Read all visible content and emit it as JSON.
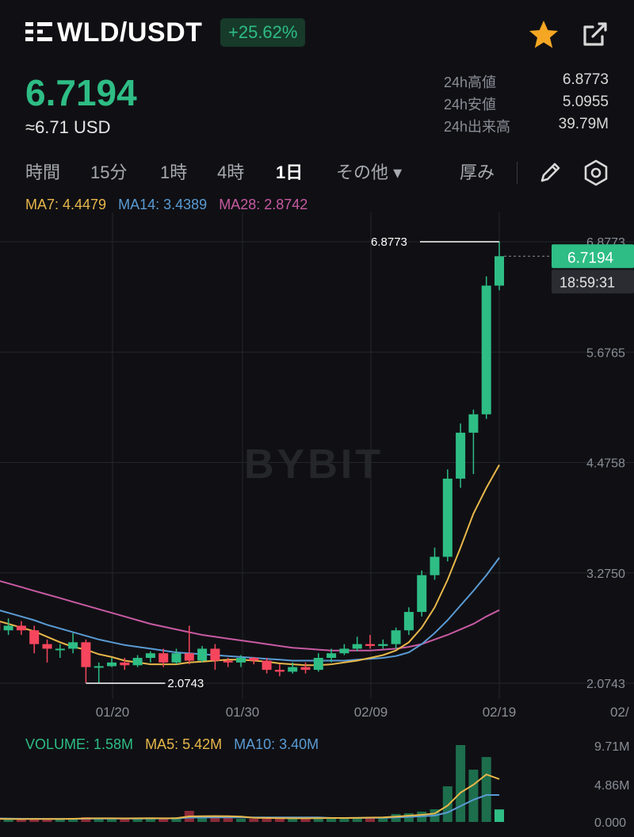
{
  "header": {
    "pair": "WLD/USDT",
    "change": "+25.62%",
    "logo_icon": "worldcoin-logo-icon",
    "star_icon": "star-icon",
    "share_icon": "share-icon"
  },
  "price": {
    "last": "6.7194",
    "usd": "≈6.71 USD"
  },
  "stats": [
    {
      "label": "24h高値",
      "value": "6.8773"
    },
    {
      "label": "24h安値",
      "value": "5.0955"
    },
    {
      "label": "24h出来高",
      "value": "39.79M"
    }
  ],
  "tabs": [
    {
      "label": "時間"
    },
    {
      "label": "15分"
    },
    {
      "label": "1時"
    },
    {
      "label": "4時"
    },
    {
      "label": "1日",
      "active": true
    },
    {
      "label": "その他 ▾"
    },
    {
      "label": "厚み"
    }
  ],
  "tools": {
    "pencil_icon": "pencil-icon",
    "settings_icon": "settings-icon"
  },
  "ma": {
    "ma7_label": "MA7: 4.4479",
    "ma14_label": "MA14: 3.4389",
    "ma28_label": "MA28: 2.8742",
    "ma7_color": "#e8b74a",
    "ma14_color": "#5a9bd4",
    "ma28_color": "#c85aa3"
  },
  "volume": {
    "vol_label": "VOLUME: 1.58M",
    "ma5_label": "MA5: 5.42M",
    "ma10_label": "MA10: 3.40M"
  },
  "chart_data": {
    "type": "candlestick",
    "watermark": "BYBIT",
    "up_color": "#2ebd85",
    "down_color": "#f6465d",
    "price_ticks": [
      "6.8773",
      "5.6765",
      "4.4758",
      "3.2750",
      "2.0743"
    ],
    "price_tick_values": [
      6.8773,
      5.6765,
      4.4758,
      3.275,
      2.0743
    ],
    "date_ticks": [
      "01/20",
      "01/30",
      "02/09",
      "02/19",
      "02/"
    ],
    "high_marker": "6.8773",
    "low_marker": "2.0743",
    "last_price_tag": "6.7194",
    "countdown_tag": "18:59:31",
    "volume_ticks": [
      "9.71M",
      "4.86M",
      "0.000"
    ],
    "candles": [
      [
        2.75,
        2.95,
        2.68,
        3.2
      ],
      [
        2.95,
        2.95,
        2.8,
        3.05
      ],
      [
        2.95,
        2.78,
        2.72,
        3.0
      ],
      [
        2.78,
        2.75,
        2.7,
        2.9
      ],
      [
        2.75,
        2.65,
        2.6,
        2.8
      ],
      [
        2.65,
        2.7,
        2.6,
        2.78
      ],
      [
        2.7,
        2.65,
        2.6,
        2.75
      ],
      [
        2.65,
        2.5,
        2.4,
        2.7
      ],
      [
        2.5,
        2.45,
        2.3,
        2.55
      ],
      [
        2.45,
        2.45,
        2.35,
        2.5
      ],
      [
        2.45,
        2.52,
        2.4,
        2.62
      ],
      [
        2.52,
        2.25,
        2.08,
        2.55
      ],
      [
        2.25,
        2.26,
        2.08,
        2.3
      ],
      [
        2.26,
        2.3,
        2.25,
        2.35
      ],
      [
        2.3,
        2.27,
        2.22,
        2.35
      ],
      [
        2.27,
        2.35,
        2.25,
        2.38
      ],
      [
        2.35,
        2.4,
        2.3,
        2.42
      ],
      [
        2.4,
        2.3,
        2.25,
        2.45
      ],
      [
        2.3,
        2.4,
        2.28,
        2.45
      ],
      [
        2.4,
        2.32,
        2.28,
        2.7
      ],
      [
        2.32,
        2.45,
        2.3,
        2.48
      ],
      [
        2.45,
        2.32,
        2.22,
        2.5
      ],
      [
        2.32,
        2.3,
        2.25,
        2.35
      ],
      [
        2.3,
        2.35,
        2.25,
        2.38
      ],
      [
        2.35,
        2.32,
        2.28,
        2.36
      ],
      [
        2.32,
        2.22,
        2.18,
        2.35
      ],
      [
        2.22,
        2.2,
        2.15,
        2.28
      ],
      [
        2.2,
        2.25,
        2.18,
        2.3
      ],
      [
        2.25,
        2.22,
        2.18,
        2.3
      ],
      [
        2.22,
        2.35,
        2.2,
        2.4
      ],
      [
        2.35,
        2.4,
        2.3,
        2.45
      ],
      [
        2.4,
        2.45,
        2.38,
        2.5
      ],
      [
        2.45,
        2.5,
        2.42,
        2.58
      ],
      [
        2.5,
        2.48,
        2.45,
        2.6
      ],
      [
        2.48,
        2.5,
        2.45,
        2.55
      ],
      [
        2.5,
        2.65,
        2.45,
        2.68
      ],
      [
        2.65,
        2.85,
        2.6,
        2.9
      ],
      [
        2.85,
        3.25,
        2.8,
        3.3
      ],
      [
        3.25,
        3.45,
        3.2,
        3.55
      ],
      [
        3.45,
        4.3,
        3.4,
        4.4
      ],
      [
        4.3,
        4.8,
        4.2,
        4.9
      ],
      [
        4.8,
        5.0,
        4.35,
        5.05
      ],
      [
        5.0,
        6.4,
        4.95,
        6.5
      ],
      [
        6.4,
        6.72,
        6.35,
        6.88
      ]
    ],
    "ma7": [
      2.85,
      2.86,
      2.82,
      2.8,
      2.76,
      2.72,
      2.68,
      2.64,
      2.58,
      2.52,
      2.47,
      2.44,
      2.39,
      2.36,
      2.32,
      2.3,
      2.28,
      2.28,
      2.28,
      2.3,
      2.31,
      2.32,
      2.33,
      2.33,
      2.32,
      2.31,
      2.29,
      2.28,
      2.27,
      2.27,
      2.28,
      2.3,
      2.32,
      2.35,
      2.38,
      2.43,
      2.52,
      2.68,
      2.9,
      3.2,
      3.55,
      3.92,
      4.2,
      4.45
    ],
    "ma14": [
      3.0,
      2.98,
      2.95,
      2.92,
      2.88,
      2.84,
      2.8,
      2.76,
      2.71,
      2.67,
      2.63,
      2.59,
      2.55,
      2.52,
      2.49,
      2.47,
      2.45,
      2.43,
      2.41,
      2.4,
      2.39,
      2.38,
      2.37,
      2.36,
      2.35,
      2.34,
      2.33,
      2.32,
      2.32,
      2.32,
      2.32,
      2.32,
      2.33,
      2.34,
      2.35,
      2.37,
      2.41,
      2.5,
      2.62,
      2.76,
      2.92,
      3.08,
      3.25,
      3.44
    ],
    "ma28": [
      3.3,
      3.29,
      3.27,
      3.24,
      3.2,
      3.16,
      3.12,
      3.08,
      3.04,
      3.0,
      2.96,
      2.92,
      2.88,
      2.84,
      2.8,
      2.76,
      2.72,
      2.69,
      2.66,
      2.63,
      2.6,
      2.58,
      2.56,
      2.54,
      2.52,
      2.5,
      2.48,
      2.46,
      2.45,
      2.44,
      2.43,
      2.43,
      2.43,
      2.43,
      2.44,
      2.45,
      2.47,
      2.5,
      2.55,
      2.6,
      2.66,
      2.72,
      2.8,
      2.87
    ],
    "volumes": [
      0.6,
      0.5,
      0.4,
      0.35,
      0.3,
      0.35,
      0.3,
      0.45,
      0.4,
      0.35,
      0.4,
      0.6,
      0.5,
      0.4,
      0.35,
      0.45,
      0.5,
      0.4,
      0.6,
      1.4,
      0.6,
      0.7,
      0.5,
      0.4,
      0.4,
      0.5,
      0.5,
      0.45,
      0.4,
      0.55,
      0.5,
      0.5,
      0.6,
      0.6,
      0.6,
      1.0,
      1.1,
      1.3,
      1.6,
      4.5,
      9.71,
      6.6,
      8.2,
      1.58
    ],
    "vol_ma5": [
      0.5,
      0.48,
      0.45,
      0.42,
      0.4,
      0.38,
      0.36,
      0.38,
      0.38,
      0.38,
      0.4,
      0.45,
      0.46,
      0.46,
      0.45,
      0.46,
      0.48,
      0.46,
      0.48,
      0.7,
      0.72,
      0.74,
      0.72,
      0.68,
      0.52,
      0.5,
      0.48,
      0.46,
      0.46,
      0.48,
      0.5,
      0.5,
      0.51,
      0.55,
      0.57,
      0.68,
      0.79,
      0.9,
      1.06,
      2.06,
      3.7,
      4.7,
      6.0,
      5.42
    ],
    "vol_ma10": [
      0.5,
      0.49,
      0.48,
      0.46,
      0.44,
      0.42,
      0.4,
      0.4,
      0.39,
      0.39,
      0.39,
      0.41,
      0.42,
      0.43,
      0.43,
      0.43,
      0.44,
      0.44,
      0.45,
      0.55,
      0.56,
      0.58,
      0.58,
      0.58,
      0.58,
      0.58,
      0.58,
      0.58,
      0.57,
      0.57,
      0.5,
      0.5,
      0.51,
      0.52,
      0.53,
      0.58,
      0.64,
      0.72,
      0.8,
      1.2,
      2.0,
      2.8,
      3.4,
      3.4
    ]
  }
}
